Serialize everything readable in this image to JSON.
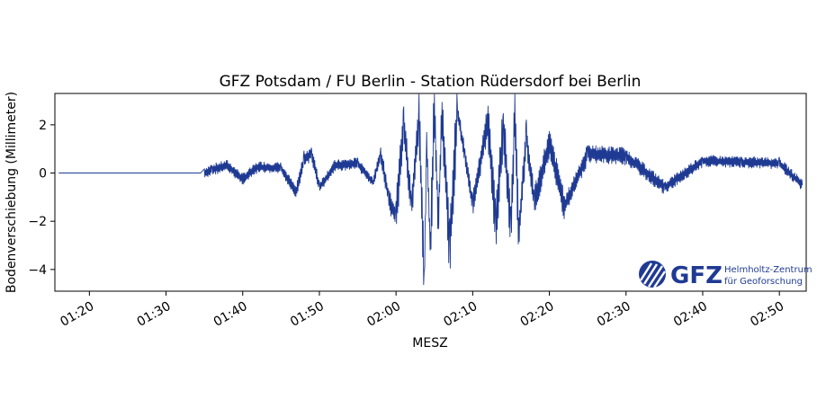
{
  "chart_data": {
    "type": "line",
    "title": "GFZ Potsdam / FU Berlin - Station Rüdersdorf bei Berlin",
    "xlabel": "MESZ",
    "ylabel": "Bodenverschiebung (Millimeter)",
    "x_ticks": [
      "01:20",
      "01:30",
      "01:40",
      "01:50",
      "02:00",
      "02:10",
      "02:20",
      "02:30",
      "02:40",
      "02:50"
    ],
    "y_ticks": [
      "2",
      "0",
      "−2",
      "−4"
    ],
    "xlim": [
      "01:15:30",
      "02:53:30"
    ],
    "ylim": [
      -4.9,
      3.3
    ],
    "grid": false,
    "line_color": "#1f3a93",
    "series": [
      {
        "x": [
          "01:16",
          "01:25",
          "01:35",
          "01:36",
          "01:38",
          "01:40",
          "01:42",
          "01:45",
          "01:47",
          "01:48",
          "01:49",
          "01:50",
          "01:52",
          "01:55",
          "01:57",
          "01:58",
          "01:59",
          "02:00",
          "02:01",
          "02:02",
          "02:03",
          "02:03:40",
          "02:04",
          "02:04:30",
          "02:05",
          "02:05:30",
          "02:06",
          "02:07",
          "02:08",
          "02:09",
          "02:10",
          "02:12",
          "02:13",
          "02:14",
          "02:15",
          "02:15:30",
          "02:16",
          "02:17",
          "02:18",
          "02:20",
          "02:22",
          "02:25",
          "02:30",
          "02:35",
          "02:40",
          "02:45",
          "02:50",
          "02:53"
        ],
        "y": [
          0,
          0,
          0,
          0.15,
          0.3,
          -0.25,
          0.25,
          0.2,
          -0.8,
          0.6,
          0.8,
          -0.6,
          0.3,
          0.4,
          -0.4,
          0.8,
          -1.0,
          -1.8,
          2.2,
          -1.5,
          2.3,
          -4.5,
          1.2,
          -3.3,
          2.9,
          -2.0,
          2.4,
          -3.2,
          2.6,
          0.7,
          -1.3,
          2.2,
          -2.3,
          2.0,
          -2.5,
          2.7,
          -2.6,
          1.6,
          -1.2,
          1.2,
          -1.4,
          0.8,
          0.7,
          -0.6,
          0.5,
          0.45,
          0.4,
          -0.5
        ]
      }
    ]
  },
  "logo": {
    "name": "GFZ",
    "line1": "Helmholtz-Zentrum",
    "line2": "für Geoforschung"
  }
}
